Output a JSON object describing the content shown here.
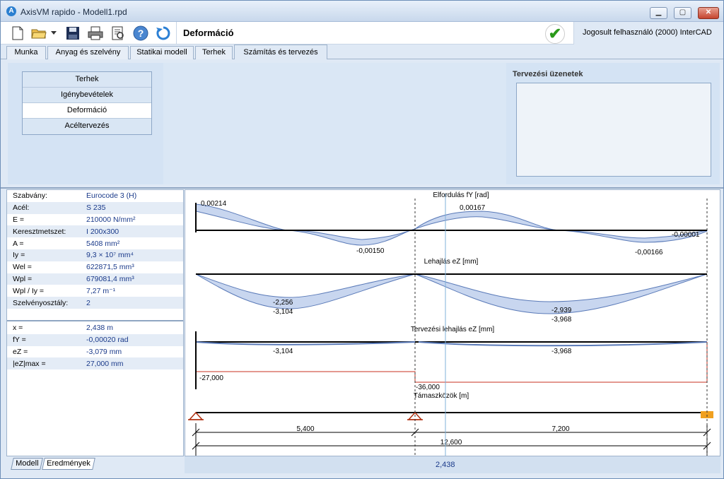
{
  "window": {
    "title": "AxisVM rapido - Modell1.rpd"
  },
  "toolbar": {
    "page_heading": "Deformáció",
    "user_info": "Jogosult felhasználó  (2000)  InterCAD",
    "icons": [
      "new-file-icon",
      "open-folder-icon",
      "dropdown-arrow-icon",
      "save-icon",
      "print-icon",
      "print-preview-icon",
      "help-icon",
      "refresh-icon"
    ]
  },
  "tabs": [
    {
      "label": "Munka"
    },
    {
      "label": "Anyag és szelvény"
    },
    {
      "label": "Statikai modell"
    },
    {
      "label": "Terhek"
    },
    {
      "label": "Számítás és tervezés",
      "active": true
    }
  ],
  "side_menu": [
    {
      "label": "Terhek"
    },
    {
      "label": "Igénybevételek"
    },
    {
      "label": "Deformáció",
      "selected": true
    },
    {
      "label": "Acéltervezés"
    }
  ],
  "messages": {
    "title": "Tervezési üzenetek"
  },
  "properties": {
    "rows": [
      {
        "key": "Szabvány:",
        "value": "Eurocode 3 (H)"
      },
      {
        "key": "Acél:",
        "value": "S 235"
      },
      {
        "key": "E =",
        "value": "210000 N/mm²"
      },
      {
        "key": "Keresztmetszet:",
        "value": "I 200x300"
      },
      {
        "key": "A =",
        "value": "5408 mm²"
      },
      {
        "key": "Iy =",
        "value": "9,3 × 10⁷ mm⁴"
      },
      {
        "key": "Wel =",
        "value": "622871,5 mm³"
      },
      {
        "key": "Wpl =",
        "value": "679081,4 mm³"
      },
      {
        "key": "Wpl / Iy =",
        "value": "7,27 m⁻¹"
      },
      {
        "key": "Szelvényosztály:",
        "value": "2"
      }
    ],
    "results": [
      {
        "key": "x =",
        "value": "2,438 m"
      },
      {
        "key": "fY =",
        "value": "-0,00020 rad"
      },
      {
        "key": "eZ =",
        "value": "-3,079 mm"
      },
      {
        "key": "|eZ|max =",
        "value": "27,000 mm"
      }
    ]
  },
  "bottom_tabs": [
    {
      "label": "Modell"
    },
    {
      "label": "Eredmények",
      "active": true
    }
  ],
  "status": {
    "cursor_x": "2,438"
  },
  "diagrams": {
    "rotation_title": "Elfordulás fY [rad]",
    "rotation_labels": [
      "0,00214",
      "-0,00150",
      "0,00167",
      "-0,00001",
      "-0,00166"
    ],
    "deflection_title": "Lehajlás eZ [mm]",
    "deflection_labels": [
      "-2,256",
      "-3,104",
      "-2,939",
      "-3,968"
    ],
    "design_title": "Tervezési lehajlás eZ [mm]",
    "design_labels": [
      "-3,104",
      "-3,968",
      "-27,000",
      "-36,000"
    ],
    "supports_title": "Támaszközök [m]",
    "span_labels": [
      "5,400",
      "7,200",
      "12,600"
    ]
  }
}
